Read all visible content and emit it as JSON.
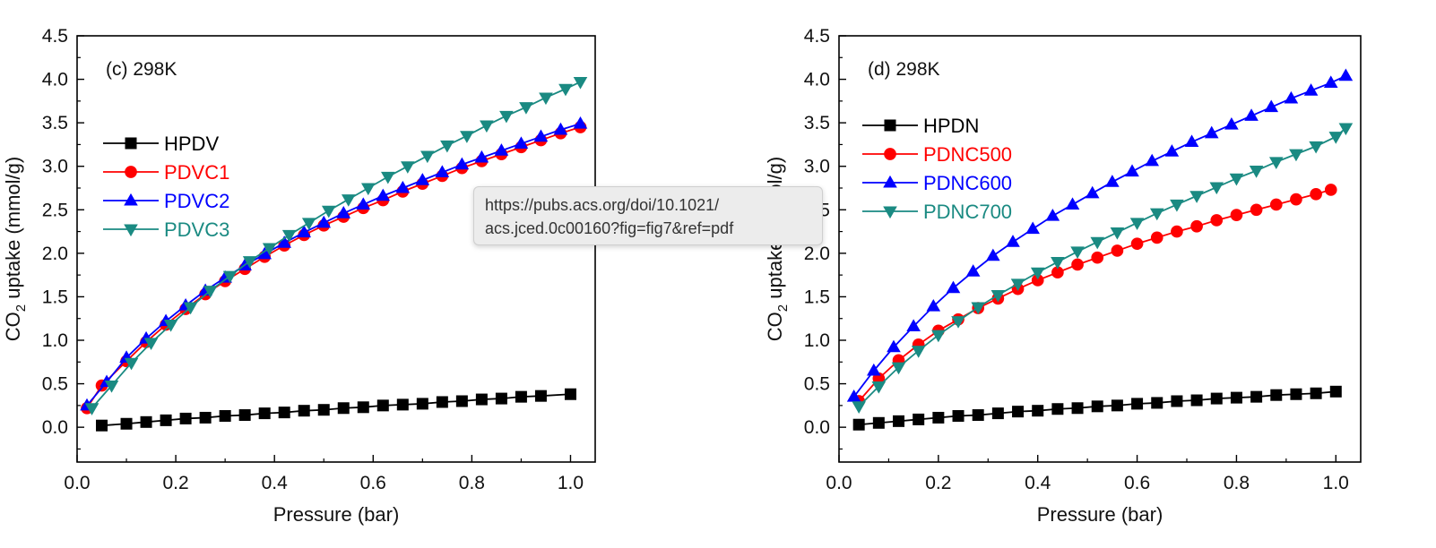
{
  "tooltip": {
    "line1": "https://pubs.acs.org/doi/10.1021/",
    "line2": "acs.jced.0c00160?fig=fig7&ref=pdf"
  },
  "chart_data": [
    {
      "type": "line",
      "annotation": "(c) 298K",
      "xlabel": "Pressure (bar)",
      "ylabel": "CO2 uptake (mmol/g)",
      "xlim": [
        0,
        1.05
      ],
      "ylim": [
        -0.4,
        4.5
      ],
      "xticks": [
        "0.0",
        "0.2",
        "0.4",
        "0.6",
        "0.8",
        "1.0"
      ],
      "yticks": [
        "0.0",
        "0.5",
        "1.0",
        "1.5",
        "2.0",
        "2.5",
        "3.0",
        "3.5",
        "4.0",
        "4.5"
      ],
      "legend_position": "upper-left",
      "series": [
        {
          "name": "HPDV",
          "color": "#000000",
          "marker": "square",
          "x": [
            0.05,
            0.1,
            0.14,
            0.18,
            0.22,
            0.26,
            0.3,
            0.34,
            0.38,
            0.42,
            0.46,
            0.5,
            0.54,
            0.58,
            0.62,
            0.66,
            0.7,
            0.74,
            0.78,
            0.82,
            0.86,
            0.9,
            0.94,
            1.0
          ],
          "y": [
            0.02,
            0.04,
            0.06,
            0.08,
            0.1,
            0.11,
            0.13,
            0.14,
            0.16,
            0.17,
            0.19,
            0.2,
            0.22,
            0.23,
            0.25,
            0.26,
            0.27,
            0.29,
            0.3,
            0.32,
            0.33,
            0.35,
            0.36,
            0.38
          ]
        },
        {
          "name": "PDVC1",
          "color": "#ff0000",
          "marker": "circle",
          "x": [
            0.02,
            0.05,
            0.1,
            0.14,
            0.18,
            0.22,
            0.26,
            0.3,
            0.34,
            0.38,
            0.42,
            0.46,
            0.5,
            0.54,
            0.58,
            0.62,
            0.66,
            0.7,
            0.74,
            0.78,
            0.82,
            0.86,
            0.9,
            0.94,
            0.98,
            1.02
          ],
          "y": [
            0.22,
            0.48,
            0.76,
            0.98,
            1.18,
            1.36,
            1.53,
            1.68,
            1.82,
            1.96,
            2.09,
            2.21,
            2.32,
            2.42,
            2.52,
            2.61,
            2.71,
            2.8,
            2.89,
            2.98,
            3.06,
            3.14,
            3.22,
            3.3,
            3.38,
            3.45
          ]
        },
        {
          "name": "PDVC2",
          "color": "#0000ff",
          "marker": "triangle-up",
          "x": [
            0.02,
            0.06,
            0.1,
            0.14,
            0.18,
            0.22,
            0.26,
            0.3,
            0.34,
            0.38,
            0.42,
            0.46,
            0.5,
            0.54,
            0.58,
            0.62,
            0.66,
            0.7,
            0.74,
            0.78,
            0.82,
            0.86,
            0.9,
            0.94,
            0.98,
            1.02
          ],
          "y": [
            0.25,
            0.52,
            0.8,
            1.02,
            1.22,
            1.4,
            1.57,
            1.72,
            1.86,
            1.99,
            2.12,
            2.24,
            2.35,
            2.46,
            2.56,
            2.66,
            2.75,
            2.84,
            2.93,
            3.02,
            3.1,
            3.18,
            3.26,
            3.34,
            3.42,
            3.49
          ]
        },
        {
          "name": "PDVC3",
          "color": "#1a8a82",
          "marker": "triangle-down",
          "x": [
            0.03,
            0.07,
            0.11,
            0.15,
            0.19,
            0.23,
            0.27,
            0.31,
            0.35,
            0.39,
            0.43,
            0.47,
            0.51,
            0.55,
            0.59,
            0.63,
            0.67,
            0.71,
            0.75,
            0.79,
            0.83,
            0.87,
            0.91,
            0.95,
            0.99,
            1.02
          ],
          "y": [
            0.22,
            0.48,
            0.74,
            0.97,
            1.18,
            1.38,
            1.57,
            1.74,
            1.91,
            2.06,
            2.21,
            2.35,
            2.49,
            2.62,
            2.75,
            2.88,
            3.0,
            3.12,
            3.24,
            3.35,
            3.47,
            3.58,
            3.68,
            3.79,
            3.89,
            3.97
          ]
        }
      ]
    },
    {
      "type": "line",
      "annotation": "(d) 298K",
      "xlabel": "Pressure (bar)",
      "ylabel": "CO2 uptake (mmol/g)",
      "xlim": [
        0,
        1.05
      ],
      "ylim": [
        -0.4,
        4.5
      ],
      "xticks": [
        "0.0",
        "0.2",
        "0.4",
        "0.6",
        "0.8",
        "1.0"
      ],
      "yticks": [
        "0.0",
        "0.5",
        "1.0",
        "1.5",
        "2.0",
        "2.5",
        "3.0",
        "3.5",
        "4.0",
        "4.5"
      ],
      "legend_position": "upper-left",
      "series": [
        {
          "name": "HPDN",
          "color": "#000000",
          "marker": "square",
          "x": [
            0.04,
            0.08,
            0.12,
            0.16,
            0.2,
            0.24,
            0.28,
            0.32,
            0.36,
            0.4,
            0.44,
            0.48,
            0.52,
            0.56,
            0.6,
            0.64,
            0.68,
            0.72,
            0.76,
            0.8,
            0.84,
            0.88,
            0.92,
            0.96,
            1.0
          ],
          "y": [
            0.03,
            0.05,
            0.07,
            0.09,
            0.11,
            0.13,
            0.14,
            0.16,
            0.18,
            0.19,
            0.21,
            0.22,
            0.24,
            0.25,
            0.27,
            0.28,
            0.3,
            0.31,
            0.33,
            0.34,
            0.35,
            0.37,
            0.38,
            0.39,
            0.41
          ]
        },
        {
          "name": "PDNC500",
          "color": "#ff0000",
          "marker": "circle",
          "x": [
            0.04,
            0.08,
            0.12,
            0.16,
            0.2,
            0.24,
            0.28,
            0.32,
            0.36,
            0.4,
            0.44,
            0.48,
            0.52,
            0.56,
            0.6,
            0.64,
            0.68,
            0.72,
            0.76,
            0.8,
            0.84,
            0.88,
            0.92,
            0.96,
            0.99
          ],
          "y": [
            0.3,
            0.56,
            0.77,
            0.95,
            1.11,
            1.24,
            1.37,
            1.48,
            1.59,
            1.69,
            1.78,
            1.87,
            1.95,
            2.03,
            2.11,
            2.18,
            2.25,
            2.31,
            2.38,
            2.44,
            2.5,
            2.56,
            2.62,
            2.68,
            2.73
          ]
        },
        {
          "name": "PDNC600",
          "color": "#0000ff",
          "marker": "triangle-up",
          "x": [
            0.03,
            0.07,
            0.11,
            0.15,
            0.19,
            0.23,
            0.27,
            0.31,
            0.35,
            0.39,
            0.43,
            0.47,
            0.51,
            0.55,
            0.59,
            0.63,
            0.67,
            0.71,
            0.75,
            0.79,
            0.83,
            0.87,
            0.91,
            0.95,
            0.99,
            1.02
          ],
          "y": [
            0.35,
            0.65,
            0.92,
            1.16,
            1.39,
            1.6,
            1.79,
            1.97,
            2.13,
            2.28,
            2.43,
            2.56,
            2.69,
            2.82,
            2.94,
            3.06,
            3.17,
            3.28,
            3.38,
            3.48,
            3.58,
            3.68,
            3.78,
            3.87,
            3.96,
            4.04
          ]
        },
        {
          "name": "PDNC700",
          "color": "#1a8a82",
          "marker": "triangle-down",
          "x": [
            0.04,
            0.08,
            0.12,
            0.16,
            0.2,
            0.24,
            0.28,
            0.32,
            0.36,
            0.4,
            0.44,
            0.48,
            0.52,
            0.56,
            0.6,
            0.64,
            0.68,
            0.72,
            0.76,
            0.8,
            0.84,
            0.88,
            0.92,
            0.96,
            1.0,
            1.02
          ],
          "y": [
            0.24,
            0.47,
            0.69,
            0.88,
            1.06,
            1.22,
            1.38,
            1.52,
            1.65,
            1.78,
            1.9,
            2.02,
            2.13,
            2.24,
            2.35,
            2.46,
            2.56,
            2.66,
            2.76,
            2.86,
            2.95,
            3.05,
            3.14,
            3.23,
            3.34,
            3.44
          ]
        }
      ]
    }
  ]
}
